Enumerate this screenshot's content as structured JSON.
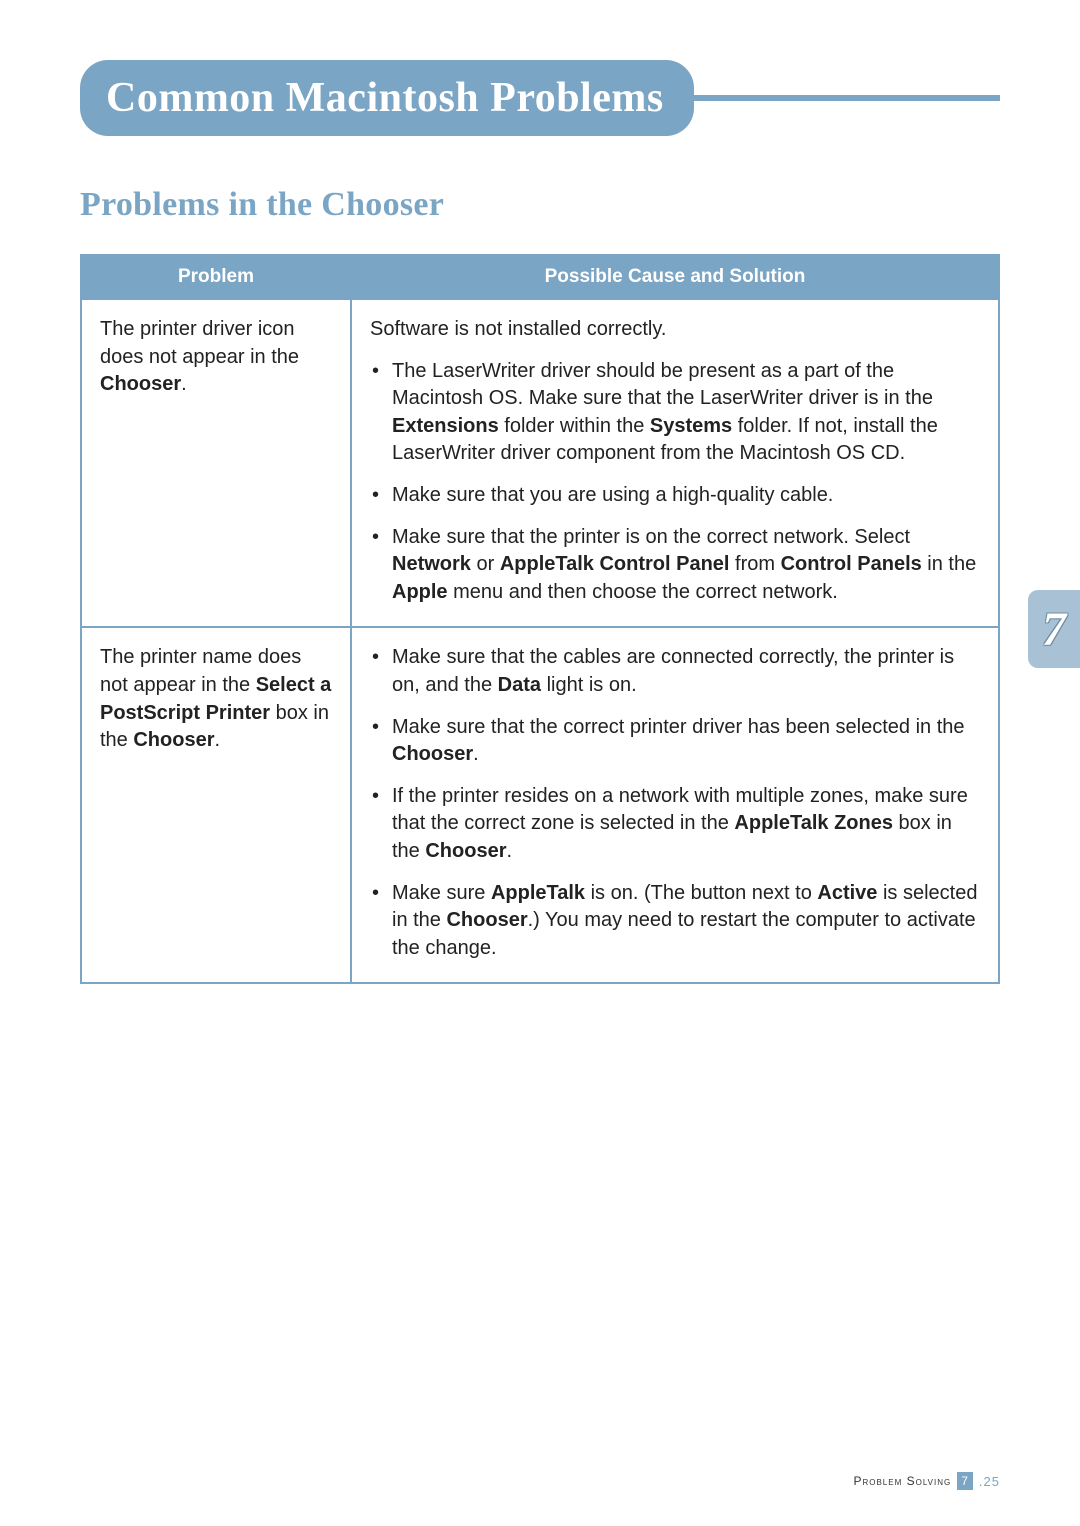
{
  "colors": {
    "accent": "#7aa5c4",
    "side_tab_bg": "#a8c1d4",
    "text": "#222222",
    "white": "#ffffff"
  },
  "typography": {
    "title_font": "Georgia serif",
    "title_size_pt": 32,
    "body_font": "Verdana sans-serif",
    "body_size_pt": 15
  },
  "title": "Common Macintosh Problems",
  "subtitle": "Problems in the Chooser",
  "side_tab": "7",
  "table": {
    "headers": [
      "Problem",
      "Possible Cause and Solution"
    ],
    "rows": [
      {
        "problem_html": "The printer driver icon does not appear in the <b>Chooser</b>.",
        "solution_lead": "Software is not installed correctly.",
        "solution_items_html": [
          "The LaserWriter driver should be present as a part of the Macintosh OS. Make sure that the LaserWriter driver is in the <b>Extensions</b> folder within the <b>Systems</b> folder. If not, install the LaserWriter driver component from the Macintosh OS CD.",
          "Make sure that you are using a high-quality cable.",
          "Make sure that the printer is on the correct network. Select <b>Network</b> or <b>AppleTalk Control Panel</b> from <b>Control Panels</b> in the <b>Apple</b> menu and then choose the correct network."
        ]
      },
      {
        "problem_html": "The printer name does not appear in the <b>Select a PostScript Printer</b> box in the <b>Chooser</b>.",
        "solution_lead": "",
        "solution_items_html": [
          "Make sure that the cables are connected correctly, the printer is on, and the <b>Data</b> light is on.",
          "Make sure that the correct printer driver has been selected in the <b>Chooser</b>.",
          "If the printer resides on a network with multiple zones, make sure that the correct zone is selected in the <b>AppleTalk Zones</b> box in the <b>Chooser</b>.",
          "Make sure <b>AppleTalk</b> is on. (The button next to <b>Active</b> is selected in the <b>Chooser</b>.) You may need to restart the computer to activate the change."
        ]
      }
    ]
  },
  "footer": {
    "section": "Problem Solving",
    "chapter": "7",
    "page": ".25"
  }
}
